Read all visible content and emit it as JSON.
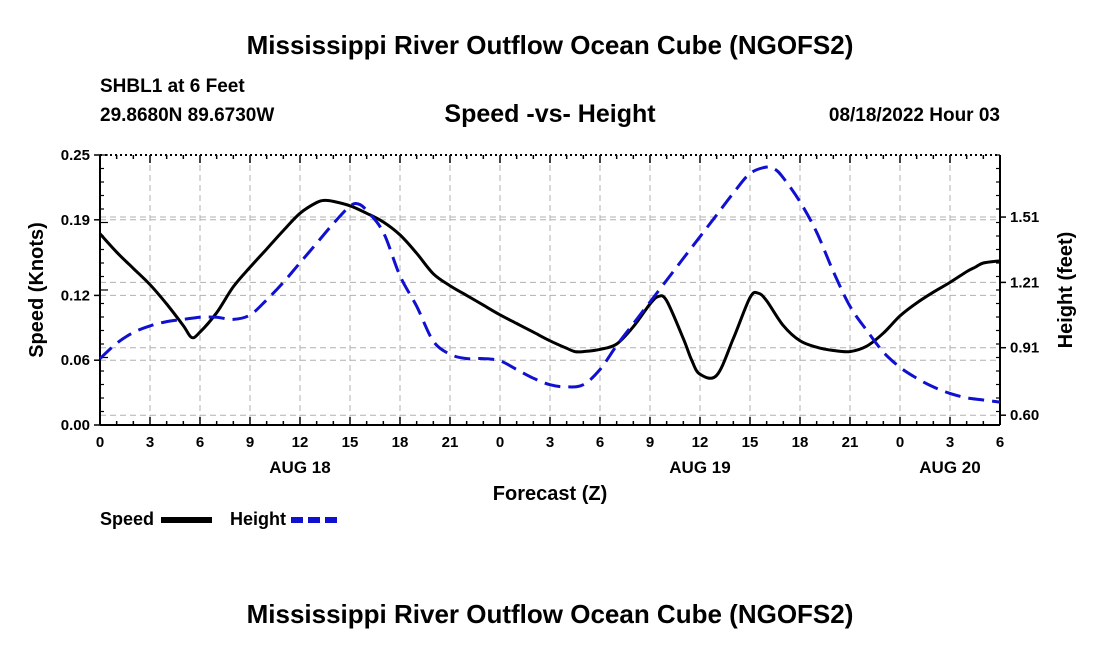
{
  "page": {
    "title": "Mississippi River Outflow Ocean Cube (NGOFS2)",
    "footer_title": "Mississippi River Outflow Ocean Cube (NGOFS2)"
  },
  "header": {
    "station": "SHBL1 at 6 Feet",
    "coords": "29.8680N  89.6730W",
    "subtitle": "Speed -vs- Height",
    "datetime": "08/18/2022 Hour 03"
  },
  "chart_data": {
    "type": "line",
    "title": "Speed -vs- Height",
    "xlabel": "Forecast (Z)",
    "ylabel": "Speed (Knots)",
    "y2label": "Height (feet)",
    "xlim": [
      0,
      54
    ],
    "ylim": [
      0,
      0.25
    ],
    "y2lim": [
      0.555,
      1.795
    ],
    "x_ticks": [
      0,
      3,
      6,
      9,
      12,
      15,
      18,
      21,
      24,
      27,
      30,
      33,
      36,
      39,
      42,
      45,
      48,
      51,
      54
    ],
    "x_tick_labels": [
      "0",
      "3",
      "6",
      "9",
      "12",
      "15",
      "18",
      "21",
      "0",
      "3",
      "6",
      "9",
      "12",
      "15",
      "18",
      "21",
      "0",
      "3",
      "6"
    ],
    "date_labels": [
      {
        "hour": 12,
        "label": "AUG 18"
      },
      {
        "hour": 36,
        "label": "AUG 19"
      },
      {
        "hour": 51,
        "label": "AUG 20"
      }
    ],
    "y_ticks": [
      0.0,
      0.06,
      0.12,
      0.19,
      0.25
    ],
    "y_tick_labels": [
      "0.00",
      "0.06",
      "0.12",
      "0.19",
      "0.25"
    ],
    "y2_ticks": [
      0.6,
      0.91,
      1.21,
      1.51
    ],
    "y2_tick_labels": [
      "0.60",
      "0.91",
      "1.21",
      "1.51"
    ],
    "grid": true,
    "legend_position": "bottom-left",
    "series": [
      {
        "name": "Speed",
        "axis": "left",
        "color": "#000000",
        "style": "solid",
        "x": [
          0,
          1,
          2,
          3,
          4,
          5,
          5.5,
          6,
          7,
          8,
          9,
          10,
          11,
          12,
          13,
          13.5,
          14,
          15,
          16,
          17,
          18,
          19,
          20,
          21,
          22,
          23,
          24,
          25,
          26,
          27,
          28,
          28.5,
          29,
          30,
          31,
          32,
          33,
          33.5,
          34,
          35,
          35.5,
          36,
          37,
          38,
          39,
          39.5,
          40,
          41,
          42,
          43,
          44,
          45,
          46,
          47,
          48,
          49,
          50,
          51,
          52,
          52.5,
          53,
          54
        ],
        "y": [
          0.177,
          0.16,
          0.145,
          0.13,
          0.112,
          0.092,
          0.081,
          0.086,
          0.104,
          0.128,
          0.146,
          0.163,
          0.18,
          0.196,
          0.206,
          0.208,
          0.207,
          0.203,
          0.196,
          0.188,
          0.176,
          0.159,
          0.14,
          0.129,
          0.12,
          0.111,
          0.102,
          0.094,
          0.086,
          0.078,
          0.071,
          0.068,
          0.068,
          0.07,
          0.075,
          0.091,
          0.112,
          0.119,
          0.115,
          0.08,
          0.06,
          0.047,
          0.046,
          0.08,
          0.118,
          0.122,
          0.115,
          0.092,
          0.078,
          0.072,
          0.069,
          0.068,
          0.073,
          0.085,
          0.101,
          0.113,
          0.123,
          0.132,
          0.142,
          0.146,
          0.15,
          0.152
        ]
      },
      {
        "name": "Height",
        "axis": "right",
        "color": "#1010d0",
        "style": "dashed",
        "x": [
          0,
          1,
          2,
          3,
          4,
          5,
          6,
          7,
          8,
          9,
          10,
          11,
          12,
          13,
          14,
          15,
          15.5,
          16,
          17,
          18,
          19,
          20,
          21,
          22,
          23,
          24,
          25,
          26,
          27,
          28,
          29,
          30,
          31,
          32,
          33,
          34,
          35,
          36,
          37,
          38,
          39,
          40,
          40.5,
          41,
          42,
          43,
          44,
          45,
          46,
          47,
          48,
          49,
          50,
          51,
          52,
          53,
          54
        ],
        "y": [
          0.86,
          0.93,
          0.98,
          1.01,
          1.03,
          1.04,
          1.05,
          1.05,
          1.04,
          1.06,
          1.13,
          1.21,
          1.3,
          1.39,
          1.48,
          1.56,
          1.57,
          1.54,
          1.44,
          1.24,
          1.1,
          0.94,
          0.88,
          0.86,
          0.86,
          0.85,
          0.81,
          0.77,
          0.74,
          0.73,
          0.74,
          0.81,
          0.92,
          1.02,
          1.12,
          1.22,
          1.32,
          1.42,
          1.52,
          1.62,
          1.71,
          1.74,
          1.73,
          1.69,
          1.58,
          1.44,
          1.26,
          1.1,
          0.99,
          0.89,
          0.82,
          0.77,
          0.73,
          0.7,
          0.68,
          0.67,
          0.66
        ]
      }
    ],
    "legend": [
      {
        "name": "Speed",
        "color": "#000000",
        "style": "solid"
      },
      {
        "name": "Height",
        "color": "#1010d0",
        "style": "dashed"
      }
    ]
  }
}
